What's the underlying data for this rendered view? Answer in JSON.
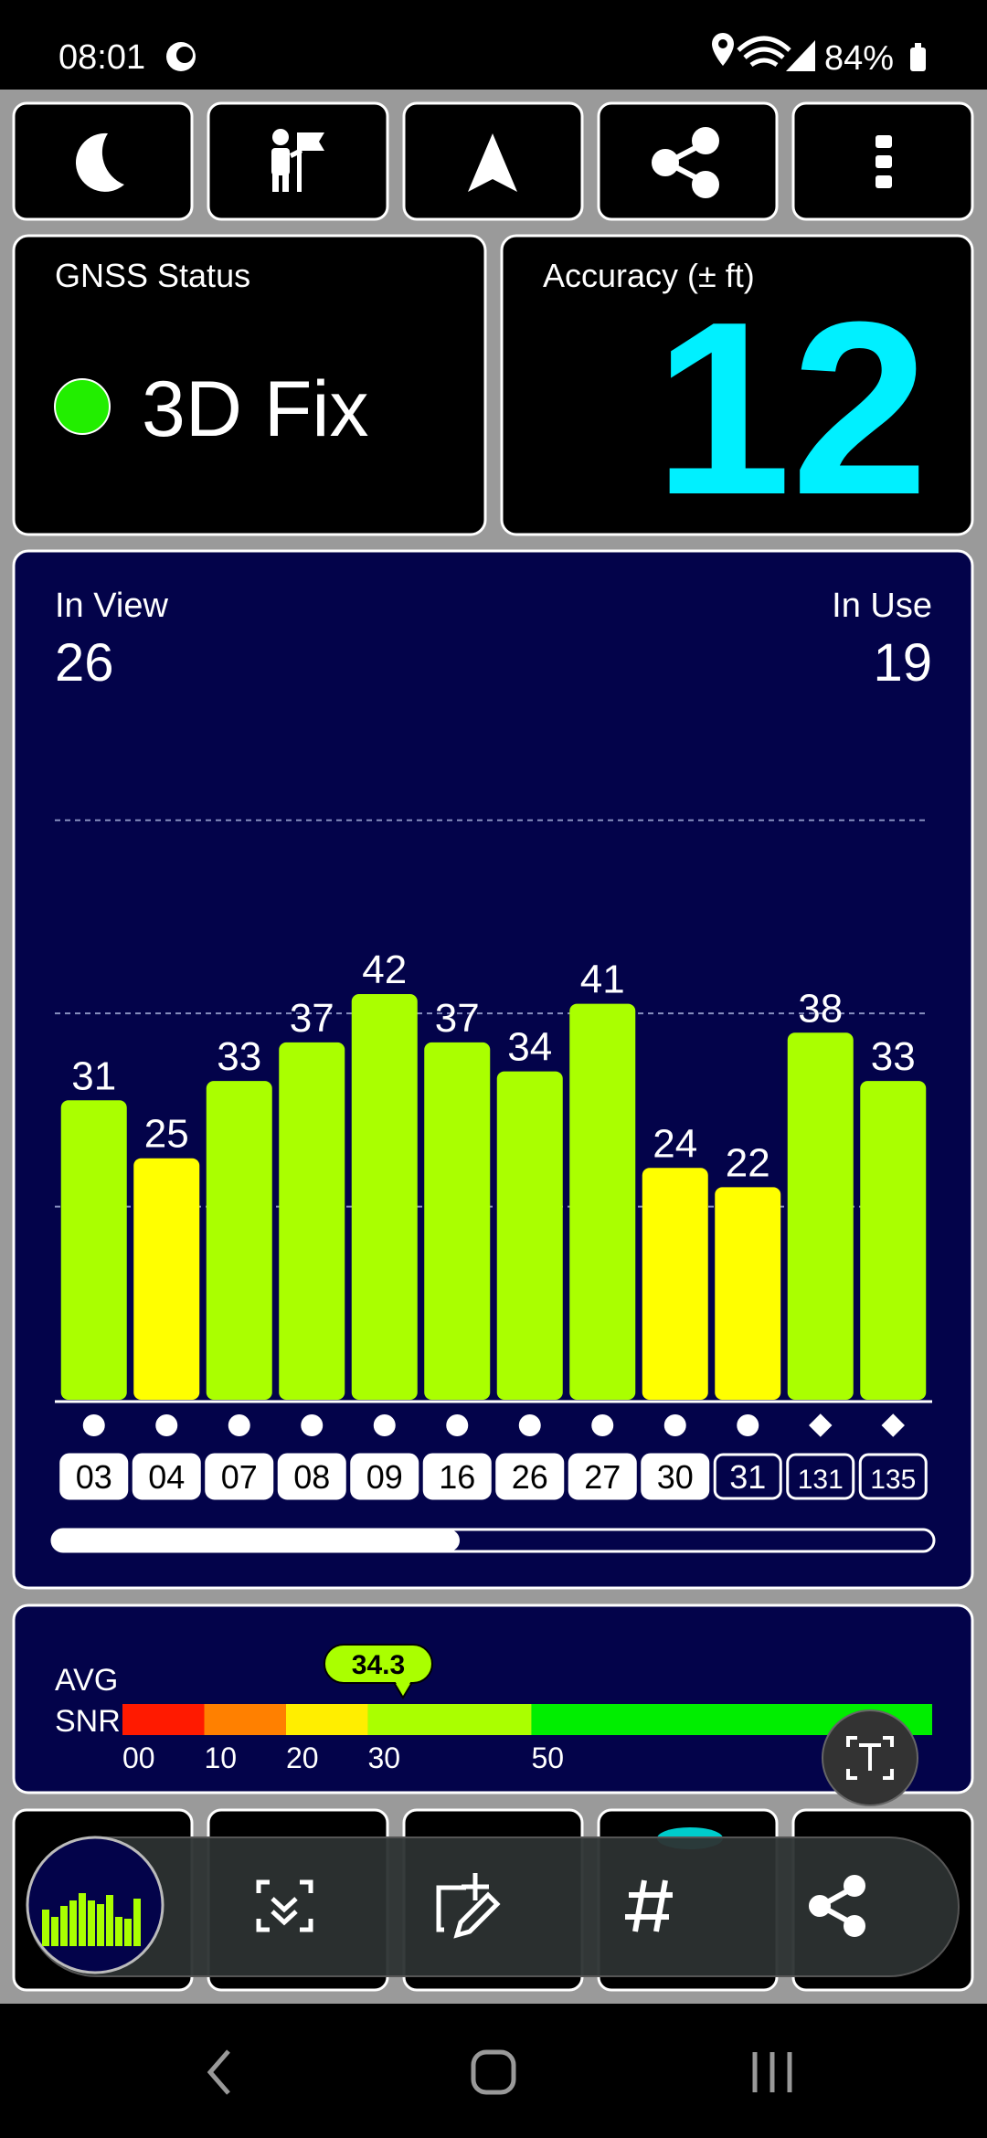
{
  "status_bar": {
    "time": "08:01",
    "battery": "84%"
  },
  "gnss_status": {
    "label": "GNSS Status",
    "fix": "3D Fix"
  },
  "accuracy": {
    "label": "Accuracy (± ft)",
    "value": 12
  },
  "satellites": {
    "in_view_label": "In View",
    "in_view": 26,
    "in_use_label": "In Use",
    "in_use": 19,
    "chart": {
      "type": "bar",
      "categories": [
        "03",
        "04",
        "07",
        "08",
        "09",
        "16",
        "26",
        "27",
        "30",
        "31",
        "131",
        "135"
      ],
      "values": [
        31,
        25,
        33,
        37,
        42,
        37,
        34,
        41,
        24,
        22,
        38,
        33
      ],
      "colors": [
        "#aaff00",
        "#ffff00",
        "#aaff00",
        "#aaff00",
        "#aaff00",
        "#aaff00",
        "#aaff00",
        "#aaff00",
        "#ffff00",
        "#ffff00",
        "#aaff00",
        "#aaff00"
      ],
      "used_in_fix": [
        true,
        true,
        true,
        true,
        true,
        true,
        true,
        true,
        true,
        false,
        false,
        false
      ],
      "markers": [
        "circle",
        "circle",
        "circle",
        "circle",
        "circle",
        "circle",
        "circle",
        "circle",
        "circle",
        "circle",
        "diamond",
        "diamond"
      ],
      "ylim": [
        0,
        63
      ],
      "yticks": [
        20,
        40,
        60
      ],
      "grid": true
    }
  },
  "snr": {
    "avg_label": "AVG",
    "snr_label": "SNR",
    "avg": 34.3,
    "xlim": [
      0,
      99
    ],
    "xticks": [
      {
        "value": 0,
        "label": "00"
      },
      10,
      20,
      30,
      50
    ],
    "bands": [
      {
        "from": 0,
        "to": 10,
        "color": "#ff1a00"
      },
      {
        "from": 10,
        "to": 20,
        "color": "#ff8000"
      },
      {
        "from": 20,
        "to": 30,
        "color": "#ffee00"
      },
      {
        "from": 30,
        "to": 50,
        "color": "#aaff00"
      },
      {
        "from": 50,
        "to": 99,
        "color": "#00ee00"
      }
    ]
  }
}
